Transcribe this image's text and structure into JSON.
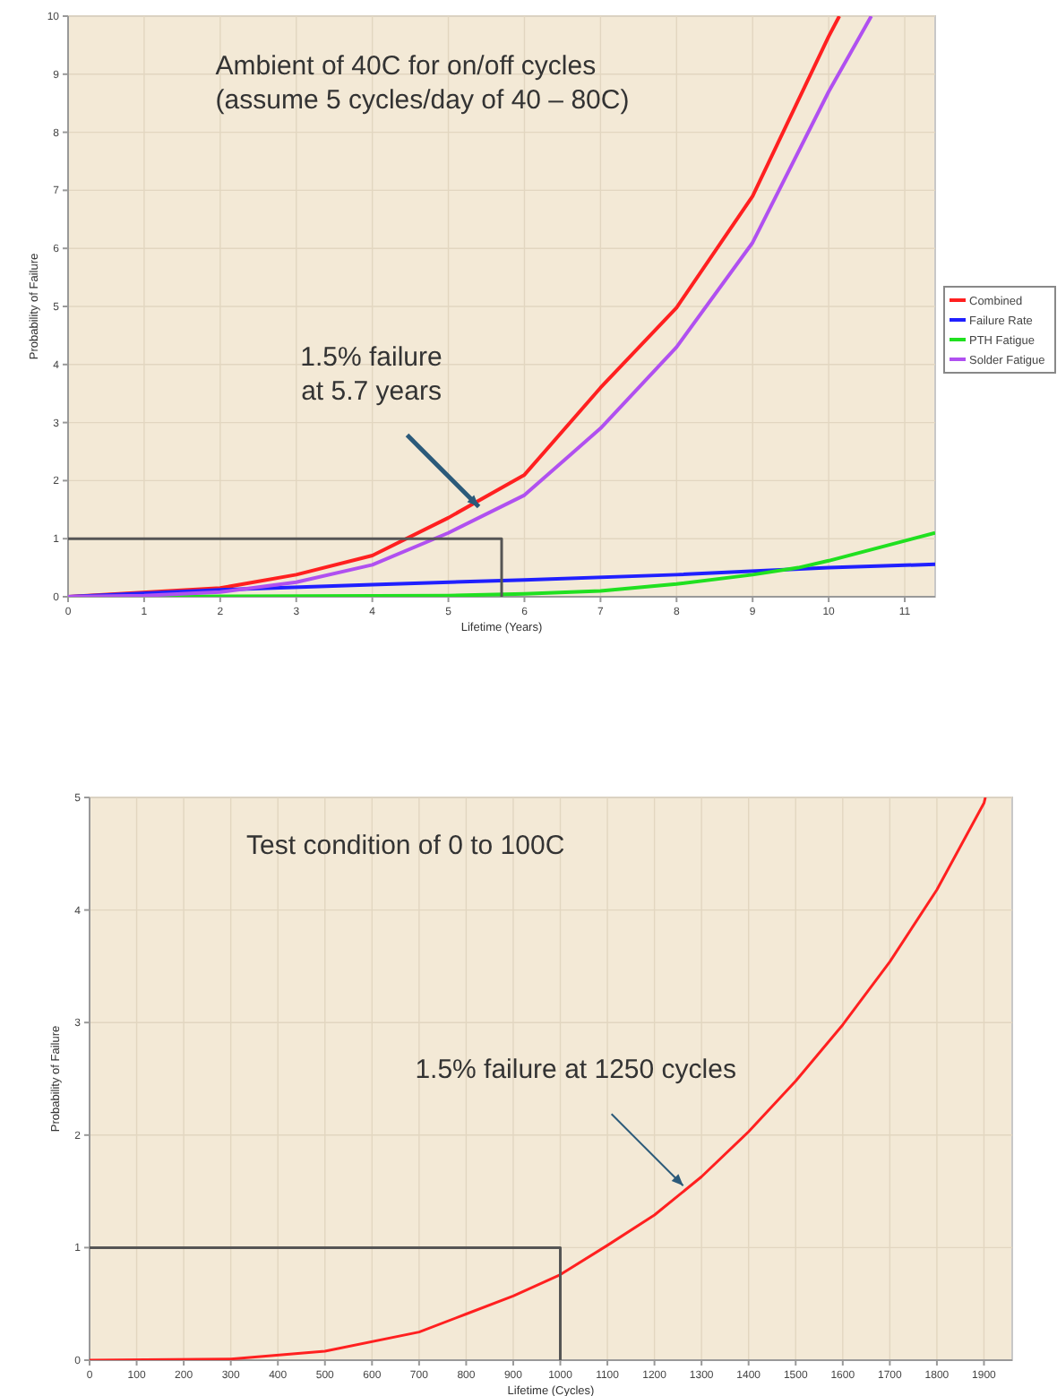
{
  "chart_data": [
    {
      "type": "line",
      "xlabel": "Lifetime (Years)",
      "ylabel": "Probability of Failure",
      "xlim": [
        0,
        11.4
      ],
      "ylim": [
        0,
        10
      ],
      "xticks": [
        0,
        1,
        2,
        3,
        4,
        5,
        6,
        7,
        8,
        9,
        10,
        11
      ],
      "yticks": [
        0,
        1,
        2,
        3,
        4,
        5,
        6,
        7,
        8,
        9,
        10
      ],
      "grid": true,
      "legend": "right",
      "marker": "none",
      "annotations": [
        "Ambient of 40C for on/off cycles\n(assume 5 cycles/day of 40 – 80C)",
        {
          "text": "1.5% failure\nat 5.7 years",
          "x": 5.4,
          "y": 1.55
        }
      ],
      "series": [
        {
          "name": "Combined",
          "color": "#ff2020",
          "x": [
            0,
            2,
            3,
            4,
            5,
            6,
            7,
            8,
            9,
            10,
            10.14
          ],
          "values": [
            0,
            0.15,
            0.38,
            0.71,
            1.36,
            2.1,
            3.6,
            4.98,
            6.9,
            9.65,
            10
          ]
        },
        {
          "name": "Failure Rate",
          "color": "#2020ff",
          "x": [
            0,
            2,
            4,
            6,
            8,
            10,
            11.4
          ],
          "values": [
            0,
            0.12,
            0.21,
            0.29,
            0.38,
            0.5,
            0.56
          ]
        },
        {
          "name": "PTH Fatigue",
          "color": "#20e020",
          "x": [
            0,
            5,
            6,
            7,
            8,
            9,
            9.6,
            10,
            11.4
          ],
          "values": [
            0,
            0.02,
            0.05,
            0.1,
            0.22,
            0.38,
            0.5,
            0.62,
            1.1
          ]
        },
        {
          "name": "Solder Fatigue",
          "color": "#b050f0",
          "x": [
            0,
            1,
            2,
            3,
            4,
            5,
            6,
            7,
            8,
            9,
            10,
            10.56
          ],
          "values": [
            0,
            0.02,
            0.08,
            0.25,
            0.55,
            1.1,
            1.75,
            2.9,
            4.3,
            6.1,
            8.7,
            10
          ]
        },
        {
          "type": "line",
          "color": "#555555",
          "x": [
            0,
            5.7,
            5.7
          ],
          "values": [
            1,
            1,
            0
          ]
        }
      ]
    },
    {
      "type": "line",
      "xlabel": "Lifetime (Cycles)",
      "ylabel": "Probability of Failure",
      "xlim": [
        0,
        1960
      ],
      "ylim": [
        0,
        5
      ],
      "xticks": [
        0,
        100,
        200,
        300,
        400,
        500,
        600,
        700,
        800,
        900,
        1000,
        1100,
        1200,
        1300,
        1400,
        1500,
        1600,
        1700,
        1800,
        1900
      ],
      "yticks": [
        0,
        1,
        2,
        3,
        4,
        5
      ],
      "grid": true,
      "marker": "none",
      "annotations": [
        "Test condition of 0 to 100C",
        {
          "text": "1.5% failure at 1250 cycles",
          "x": 1261,
          "y": 1.55
        }
      ],
      "series": [
        {
          "color": "#ff2020",
          "x": [
            0,
            300,
            500,
            700,
            800,
            900,
            1000,
            1100,
            1200,
            1300,
            1400,
            1500,
            1600,
            1700,
            1800,
            1900,
            1903
          ],
          "values": [
            0,
            0.01,
            0.08,
            0.25,
            0.41,
            0.57,
            0.76,
            1.02,
            1.29,
            1.63,
            2.03,
            2.48,
            2.98,
            3.54,
            4.18,
            4.95,
            5
          ]
        },
        {
          "type": "line",
          "color": "#555555",
          "x": [
            0,
            1000,
            1000
          ],
          "values": [
            1,
            1,
            0
          ]
        }
      ]
    }
  ]
}
